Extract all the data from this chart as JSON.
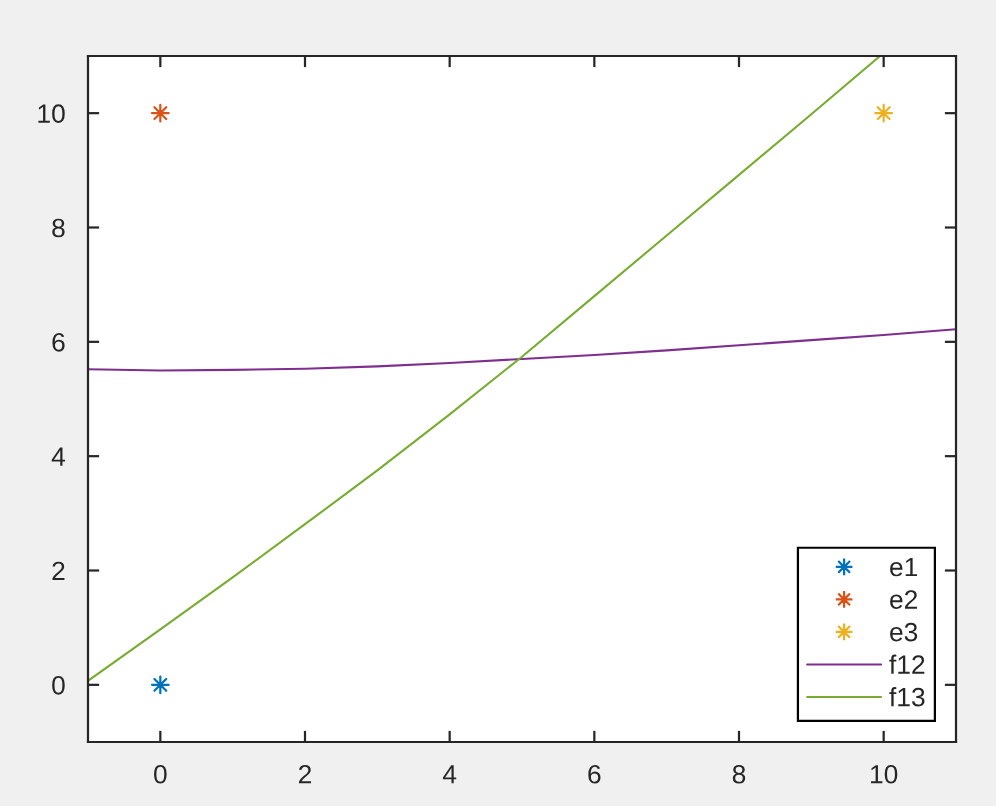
{
  "chart_data": {
    "type": "scatter",
    "xlim": [
      -1,
      11
    ],
    "ylim": [
      -1,
      11
    ],
    "xticks": [
      0,
      2,
      4,
      6,
      8,
      10
    ],
    "yticks": [
      0,
      2,
      4,
      6,
      8,
      10
    ],
    "grid": false,
    "legend": "bottom right",
    "series": [
      {
        "name": "e1",
        "color": "#0072bd",
        "marker": "star",
        "x": [
          0
        ],
        "values": [
          0
        ]
      },
      {
        "name": "e2",
        "color": "#d95319",
        "marker": "star",
        "x": [
          0
        ],
        "values": [
          10
        ]
      },
      {
        "name": "e3",
        "color": "#edb120",
        "marker": "star",
        "x": [
          10
        ],
        "values": [
          10
        ]
      },
      {
        "name": "f12",
        "type": "line",
        "color": "#7e2f8e",
        "x": [
          -1,
          0,
          1,
          2,
          3,
          4,
          5,
          6,
          7,
          8,
          9,
          10,
          11
        ],
        "values": [
          5.52,
          5.5,
          5.51,
          5.53,
          5.57,
          5.63,
          5.7,
          5.77,
          5.85,
          5.94,
          6.03,
          6.12,
          6.22
        ]
      },
      {
        "name": "f13",
        "type": "line",
        "color": "#77ac30",
        "x": [
          -1,
          0,
          1,
          2,
          3,
          4,
          5,
          6,
          7,
          8,
          9,
          9.95
        ],
        "values": [
          0.07,
          0.97,
          1.88,
          2.81,
          3.75,
          4.73,
          5.74,
          6.8,
          7.86,
          8.92,
          9.98,
          11.0
        ]
      }
    ]
  }
}
